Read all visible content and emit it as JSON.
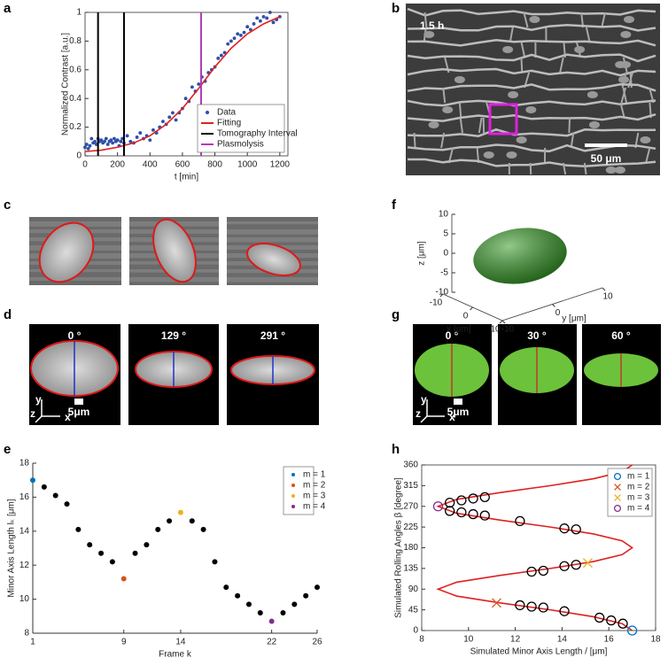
{
  "panel_labels": [
    "a",
    "b",
    "c",
    "d",
    "e",
    "f",
    "g",
    "h"
  ],
  "images": {
    "b": {
      "time": "1.5 h",
      "scale": "50 μm"
    },
    "d": {
      "angles": [
        "0 °",
        "129 °",
        "291 °"
      ],
      "scale": "5μm",
      "axes": [
        "x",
        "y",
        "z"
      ]
    },
    "g": {
      "angles": [
        "0 °",
        "30 °",
        "60 °"
      ],
      "scale": "5μm",
      "axes": [
        "x",
        "y",
        "z"
      ]
    }
  },
  "chart_data": [
    {
      "type": "scatter",
      "xlabel": "t [min]",
      "ylabel": "Normalized Contrast [a.u.]",
      "xlim": [
        0,
        1250
      ],
      "ylim": [
        0,
        1
      ],
      "xticks": [
        0,
        200,
        400,
        600,
        800,
        1000,
        1200
      ],
      "yticks": [
        0,
        0.2,
        0.4,
        0.6,
        0.8,
        1
      ],
      "box": true,
      "legend": "lower right",
      "series": [
        {
          "name": "Data",
          "color": "#2e4fa8",
          "type": "scatter",
          "marker": "dot",
          "x": [
            0,
            10,
            20,
            30,
            40,
            50,
            60,
            70,
            80,
            90,
            100,
            110,
            120,
            130,
            140,
            150,
            160,
            170,
            180,
            190,
            200,
            210,
            220,
            230,
            240,
            260,
            280,
            300,
            320,
            340,
            360,
            380,
            400,
            420,
            440,
            460,
            480,
            500,
            520,
            540,
            560,
            580,
            600,
            620,
            640,
            660,
            680,
            700,
            720,
            740,
            760,
            780,
            800,
            820,
            840,
            860,
            880,
            900,
            920,
            940,
            960,
            980,
            1000,
            1020,
            1040,
            1060,
            1080,
            1100,
            1120,
            1140,
            1160,
            1180,
            1200
          ],
          "values": [
            0.06,
            0.08,
            0.05,
            0.07,
            0.12,
            0.09,
            0.1,
            0.08,
            0.12,
            0.1,
            0.11,
            0.09,
            0.1,
            0.12,
            0.08,
            0.1,
            0.11,
            0.09,
            0.12,
            0.1,
            0.11,
            0.07,
            0.1,
            0.12,
            0.09,
            0.14,
            0.1,
            0.09,
            0.13,
            0.16,
            0.12,
            0.14,
            0.11,
            0.18,
            0.16,
            0.2,
            0.24,
            0.22,
            0.27,
            0.3,
            0.25,
            0.3,
            0.33,
            0.4,
            0.38,
            0.48,
            0.45,
            0.5,
            0.55,
            0.52,
            0.58,
            0.6,
            0.62,
            0.68,
            0.7,
            0.72,
            0.78,
            0.8,
            0.82,
            0.85,
            0.84,
            0.86,
            0.9,
            0.88,
            0.92,
            0.96,
            0.94,
            0.97,
            0.96,
            1,
            0.93,
            0.95,
            0.97
          ]
        },
        {
          "name": "Fitting",
          "color": "#e02020",
          "type": "line",
          "x": [
            0,
            100,
            200,
            300,
            400,
            500,
            600,
            700,
            800,
            900,
            1000,
            1100,
            1200
          ],
          "values": [
            0.03,
            0.04,
            0.06,
            0.09,
            0.14,
            0.22,
            0.33,
            0.47,
            0.62,
            0.75,
            0.85,
            0.92,
            0.97
          ]
        },
        {
          "name": "Tomography Interval",
          "color": "#000000",
          "type": "vline",
          "x": [
            80,
            240
          ]
        },
        {
          "name": "Plasmolysis",
          "color": "#b03cb8",
          "type": "vline",
          "x": [
            715
          ]
        }
      ]
    },
    {
      "type": "scatter",
      "xlabel": "Frame k",
      "ylabel": "Minor Axis Length lₖ [μm]",
      "xlim": [
        1,
        26
      ],
      "ylim": [
        8,
        18
      ],
      "xticks": [
        1,
        9,
        14,
        22,
        26
      ],
      "yticks": [
        8,
        10,
        12,
        14,
        16,
        18
      ],
      "box": false,
      "legend": "upper right",
      "series": [
        {
          "color": "#000000",
          "marker": "dot",
          "x": [
            2,
            3,
            4,
            5,
            6,
            7,
            8,
            10,
            11,
            12,
            13,
            15,
            16,
            17,
            18,
            19,
            20,
            21,
            23,
            24,
            25,
            26
          ],
          "values": [
            16.6,
            16.1,
            15.6,
            14.1,
            13.2,
            12.7,
            12.2,
            12.7,
            13.2,
            14.1,
            14.6,
            14.6,
            14.1,
            12.2,
            10.7,
            10.2,
            9.7,
            9.2,
            9.2,
            9.7,
            10.2,
            10.7
          ]
        },
        {
          "name": "m = 1",
          "color": "#0072bd",
          "marker": "dot",
          "x": [
            1
          ],
          "values": [
            17
          ]
        },
        {
          "name": "m = 2",
          "color": "#d95319",
          "marker": "dot",
          "x": [
            9
          ],
          "values": [
            11.2
          ]
        },
        {
          "name": "m = 3",
          "color": "#edb120",
          "marker": "dot",
          "x": [
            14
          ],
          "values": [
            15.1
          ]
        },
        {
          "name": "m = 4",
          "color": "#7e2f8e",
          "marker": "dot",
          "x": [
            22
          ],
          "values": [
            8.7
          ]
        }
      ]
    },
    {
      "type": "scatter",
      "xlabel": "Simulated Minor Axis Length / [μm]",
      "ylabel": "Simulated Rolling Angles β [degree]",
      "xlim": [
        8,
        18
      ],
      "ylim": [
        0,
        360
      ],
      "xticks": [
        8,
        10,
        12,
        14,
        16,
        18
      ],
      "yticks": [
        0,
        45,
        90,
        135,
        180,
        225,
        270,
        315,
        360
      ],
      "box": true,
      "legend": "upper right",
      "series": [
        {
          "color": "#e02020",
          "type": "line",
          "x": [
            17,
            16.57,
            15.35,
            13.5,
            11.36,
            9.49,
            8.7,
            9.49,
            11.36,
            13.5,
            15.35,
            16.57,
            17,
            16.57,
            15.35,
            13.5,
            11.36,
            9.49,
            8.7,
            9.49,
            11.36,
            13.5,
            15.35,
            16.57,
            17
          ],
          "values": [
            0,
            15,
            30,
            45,
            60,
            75,
            90,
            105,
            120,
            135,
            150,
            165,
            180,
            195,
            210,
            225,
            240,
            255,
            270,
            285,
            300,
            315,
            330,
            345,
            360
          ]
        },
        {
          "color": "#000000",
          "marker": "o",
          "x": [
            9.2,
            9.7,
            10.2,
            10.7,
            9.2,
            9.7,
            10.2,
            10.7,
            12.2,
            14.1,
            14.6,
            12.7,
            13.2,
            14.1,
            14.6,
            12.2,
            12.7,
            13.2,
            14.1,
            15.6,
            16.1,
            16.6
          ],
          "values": [
            278,
            283,
            287,
            290,
            260,
            257,
            253,
            250,
            238,
            222,
            220,
            128,
            130,
            140,
            143,
            55,
            52,
            50,
            42,
            28,
            22,
            15
          ]
        },
        {
          "name": "m = 1",
          "color": "#0072bd",
          "marker": "o",
          "x": [
            17
          ],
          "values": [
            0
          ]
        },
        {
          "name": "m = 2",
          "color": "#d95319",
          "marker": "x",
          "x": [
            11.2
          ],
          "values": [
            60
          ]
        },
        {
          "name": "m = 3",
          "color": "#edb120",
          "marker": "x",
          "x": [
            15.1
          ],
          "values": [
            147
          ]
        },
        {
          "name": "m = 4",
          "color": "#7e2f8e",
          "marker": "o",
          "x": [
            8.7
          ],
          "values": [
            270
          ]
        }
      ]
    },
    {
      "type": "ellipsoid",
      "xlabel": "x [μm]",
      "ylabel": "y [μm]",
      "zlabel": "z [μm]",
      "color": "#3a9b2a",
      "xlim": [
        -10,
        10
      ],
      "ylim": [
        -10,
        10
      ],
      "zlim": [
        -10,
        10
      ],
      "xticks": [
        -10,
        0,
        10
      ],
      "yticks": [
        -10,
        0,
        10
      ],
      "zticks": [
        -10,
        -5,
        0,
        5,
        10
      ]
    }
  ]
}
